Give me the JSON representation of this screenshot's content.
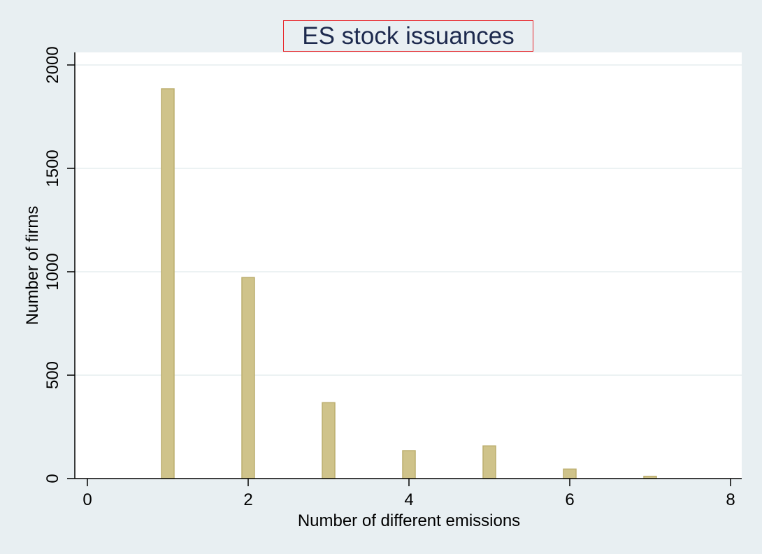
{
  "colors": {
    "background": "#e8eff2",
    "plot_background": "#ffffff",
    "bar_fill": "#cfc38a",
    "bar_edge": "#bcae6e",
    "gridline": "#e5eeef",
    "axis": "#000000",
    "title_text": "#1d2a4e",
    "title_border": "#e8262b"
  },
  "chart_data": {
    "type": "bar",
    "title": "ES stock issuances",
    "xlabel": "Number of different emissions",
    "ylabel": "Number of firms",
    "x": [
      1,
      2,
      3,
      4,
      5,
      6,
      7
    ],
    "values": [
      1885,
      972,
      367,
      135,
      158,
      46,
      11
    ],
    "xlim": [
      0,
      8
    ],
    "ylim": [
      0,
      2000
    ],
    "xticks": [
      0,
      2,
      4,
      6,
      8
    ],
    "yticks": [
      0,
      500,
      1000,
      1500,
      2000
    ],
    "grid": "horizontal",
    "legend": "none"
  }
}
